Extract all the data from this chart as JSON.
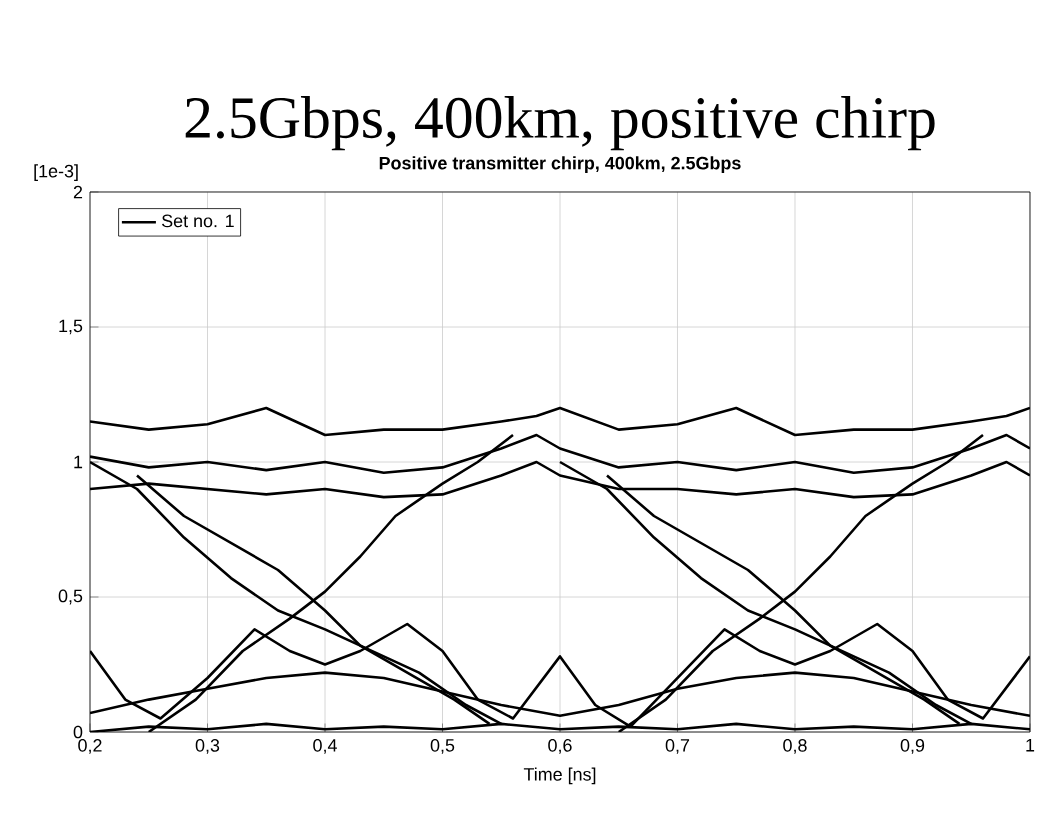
{
  "chart_data": {
    "type": "line",
    "title": "2.5Gbps, 400km, positive chirp",
    "subtitle": "Positive transmitter chirp, 400km, 2.5Gbps",
    "xlabel": "Time [ns]",
    "ylabel": "[1e-3]",
    "xlim": [
      0.2,
      1.0
    ],
    "ylim": [
      0,
      2
    ],
    "xticks": [
      {
        "value": 0.2,
        "label": "0,2"
      },
      {
        "value": 0.3,
        "label": "0,3"
      },
      {
        "value": 0.4,
        "label": "0,4"
      },
      {
        "value": 0.5,
        "label": "0,5"
      },
      {
        "value": 0.6,
        "label": "0,6"
      },
      {
        "value": 0.7,
        "label": "0,7"
      },
      {
        "value": 0.8,
        "label": "0,8"
      },
      {
        "value": 0.9,
        "label": "0,9"
      },
      {
        "value": 1.0,
        "label": "1"
      }
    ],
    "yticks": [
      0,
      {
        "value": 0.5,
        "label": "0,5"
      },
      1,
      {
        "value": 1.5,
        "label": "1,5"
      },
      2
    ],
    "grid": true,
    "legend": "top left",
    "line_style": "solid",
    "series": [
      {
        "name": "Set no. 1",
        "color": "#000000",
        "x": [
          0.2,
          0.25,
          0.3,
          0.35,
          0.4,
          0.45,
          0.5,
          0.55,
          0.58,
          0.6,
          0.65,
          0.7,
          0.75,
          0.8,
          0.85,
          0.9,
          0.95,
          0.98,
          1.0
        ],
        "values": [
          1.02,
          0.98,
          1.0,
          0.97,
          1.0,
          0.96,
          0.98,
          1.05,
          1.1,
          1.05,
          0.98,
          1.0,
          0.97,
          1.0,
          0.96,
          0.98,
          1.05,
          1.1,
          1.05
        ]
      },
      {
        "color": "#000000",
        "x": [
          0.2,
          0.25,
          0.3,
          0.35,
          0.4,
          0.45,
          0.5,
          0.55,
          0.58,
          0.6,
          0.65,
          0.7,
          0.75,
          0.8,
          0.85,
          0.9,
          0.95,
          0.98,
          1.0
        ],
        "values": [
          1.15,
          1.12,
          1.14,
          1.2,
          1.1,
          1.12,
          1.12,
          1.15,
          1.17,
          1.2,
          1.12,
          1.14,
          1.2,
          1.1,
          1.12,
          1.12,
          1.15,
          1.17,
          1.2
        ]
      },
      {
        "color": "#000000",
        "x": [
          0.2,
          0.25,
          0.3,
          0.35,
          0.4,
          0.45,
          0.5,
          0.55,
          0.58,
          0.6,
          0.65,
          0.7,
          0.75,
          0.8,
          0.85,
          0.9,
          0.95,
          0.98,
          1.0
        ],
        "values": [
          0.9,
          0.92,
          0.9,
          0.88,
          0.9,
          0.87,
          0.88,
          0.95,
          1.0,
          0.95,
          0.9,
          0.9,
          0.88,
          0.9,
          0.87,
          0.88,
          0.95,
          1.0,
          0.95
        ]
      },
      {
        "color": "#000000",
        "x": [
          0.2,
          0.24,
          0.28,
          0.32,
          0.36,
          0.4,
          0.44,
          0.48,
          0.52,
          0.55
        ],
        "values": [
          1.0,
          0.9,
          0.72,
          0.57,
          0.45,
          0.38,
          0.3,
          0.22,
          0.1,
          0.03
        ]
      },
      {
        "color": "#000000",
        "x": [
          0.24,
          0.28,
          0.32,
          0.36,
          0.4,
          0.43,
          0.47,
          0.51,
          0.54
        ],
        "values": [
          0.95,
          0.8,
          0.7,
          0.6,
          0.45,
          0.32,
          0.22,
          0.12,
          0.03
        ]
      },
      {
        "color": "#000000",
        "x": [
          0.25,
          0.29,
          0.33,
          0.37,
          0.4,
          0.43,
          0.46,
          0.5,
          0.53,
          0.56
        ],
        "values": [
          0.0,
          0.12,
          0.3,
          0.42,
          0.52,
          0.65,
          0.8,
          0.92,
          1.0,
          1.1
        ]
      },
      {
        "color": "#000000",
        "x": [
          0.6,
          0.64,
          0.68,
          0.72,
          0.76,
          0.8,
          0.84,
          0.88,
          0.92,
          0.95
        ],
        "values": [
          1.0,
          0.9,
          0.72,
          0.57,
          0.45,
          0.38,
          0.3,
          0.22,
          0.1,
          0.03
        ]
      },
      {
        "color": "#000000",
        "x": [
          0.64,
          0.68,
          0.72,
          0.76,
          0.8,
          0.83,
          0.87,
          0.91,
          0.94
        ],
        "values": [
          0.95,
          0.8,
          0.7,
          0.6,
          0.45,
          0.32,
          0.22,
          0.12,
          0.03
        ]
      },
      {
        "color": "#000000",
        "x": [
          0.65,
          0.69,
          0.73,
          0.77,
          0.8,
          0.83,
          0.86,
          0.9,
          0.93,
          0.96
        ],
        "values": [
          0.0,
          0.12,
          0.3,
          0.42,
          0.52,
          0.65,
          0.8,
          0.92,
          1.0,
          1.1
        ]
      },
      {
        "color": "#000000",
        "x": [
          0.2,
          0.23,
          0.26,
          0.3,
          0.34,
          0.37,
          0.4,
          0.43,
          0.47,
          0.5,
          0.53,
          0.56,
          0.6,
          0.63,
          0.66,
          0.7,
          0.74,
          0.77,
          0.8,
          0.83,
          0.87,
          0.9,
          0.93,
          0.96,
          1.0
        ],
        "values": [
          0.3,
          0.12,
          0.05,
          0.2,
          0.38,
          0.3,
          0.25,
          0.3,
          0.4,
          0.3,
          0.12,
          0.05,
          0.28,
          0.1,
          0.02,
          0.2,
          0.38,
          0.3,
          0.25,
          0.3,
          0.4,
          0.3,
          0.12,
          0.05,
          0.28
        ]
      },
      {
        "color": "#000000",
        "x": [
          0.2,
          0.25,
          0.3,
          0.35,
          0.4,
          0.45,
          0.5,
          0.55,
          0.6,
          0.65,
          0.7,
          0.75,
          0.8,
          0.85,
          0.9,
          0.95,
          1.0
        ],
        "values": [
          0.07,
          0.12,
          0.16,
          0.2,
          0.22,
          0.2,
          0.15,
          0.1,
          0.06,
          0.1,
          0.16,
          0.2,
          0.22,
          0.2,
          0.15,
          0.1,
          0.06
        ]
      },
      {
        "color": "#000000",
        "x": [
          0.2,
          0.25,
          0.3,
          0.35,
          0.4,
          0.45,
          0.5,
          0.55,
          0.6,
          0.65,
          0.7,
          0.75,
          0.8,
          0.85,
          0.9,
          0.95,
          1.0
        ],
        "values": [
          0.0,
          0.02,
          0.01,
          0.03,
          0.01,
          0.02,
          0.01,
          0.03,
          0.01,
          0.02,
          0.01,
          0.03,
          0.01,
          0.02,
          0.01,
          0.03,
          0.01
        ]
      }
    ]
  }
}
